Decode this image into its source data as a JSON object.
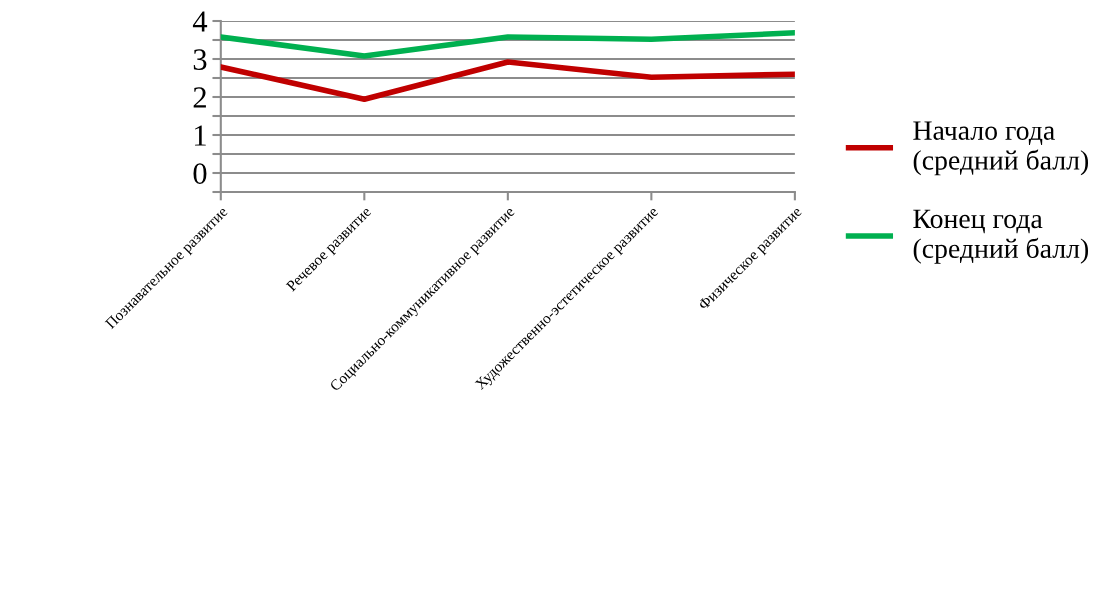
{
  "chart_data": {
    "type": "line",
    "categories": [
      "Познавательное развитие",
      "Речевое развитие",
      "Социально-коммуникативное развитие",
      "Художественно-эстетическое развитие",
      "Физическое развитие"
    ],
    "series": [
      {
        "name": "Начало года\n(средний балл)",
        "color": "#c00000",
        "values": [
          2.79,
          1.94,
          2.92,
          2.52,
          2.6
        ]
      },
      {
        "name": "Конец года\n(средний балл)",
        "color": "#00b050",
        "values": [
          3.58,
          3.08,
          3.58,
          3.52,
          3.69
        ]
      }
    ],
    "ylim": [
      -0.5,
      4
    ],
    "yticks": [
      {
        "value": -0.5,
        "label": null
      },
      0,
      {
        "value": 0.5,
        "label": null
      },
      1,
      {
        "value": 1.5,
        "label": null
      },
      2,
      {
        "value": 2.5,
        "label": null
      },
      3,
      {
        "value": 3.5,
        "label": null
      },
      4
    ],
    "grid": "y",
    "legend": "right",
    "marker": "none",
    "line_style": "solid"
  }
}
